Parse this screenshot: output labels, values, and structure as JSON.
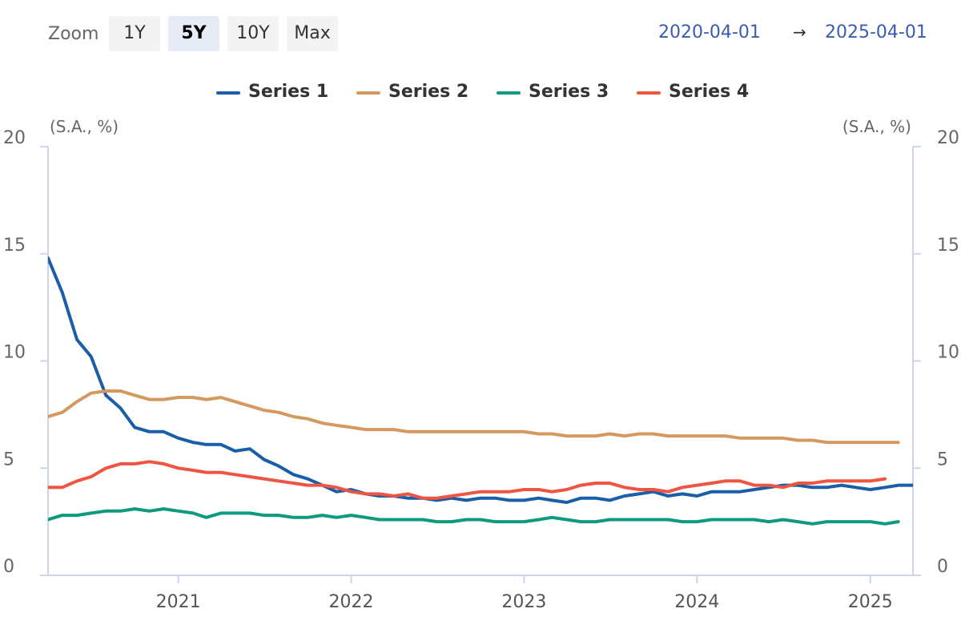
{
  "toolbar": {
    "zoom_label": "Zoom",
    "buttons": [
      "1Y",
      "5Y",
      "10Y",
      "Max"
    ],
    "active_button": "5Y",
    "range_from": "2020-04-01",
    "range_arrow": "→",
    "range_to": "2025-04-01"
  },
  "colors": {
    "series_1": "#1a5ea8",
    "series_2": "#d4995f",
    "series_3": "#0e9a7e",
    "series_4": "#f05442",
    "axis": "#ccd6eb",
    "active_button_bg": "#e6ebf5",
    "range_text": "#3a5db0"
  },
  "chart_data": {
    "type": "line",
    "y_unit_left": "(S.A., %)",
    "y_unit_right": "(S.A., %)",
    "ylim": [
      0,
      20
    ],
    "yticks": [
      0,
      5,
      10,
      15,
      20
    ],
    "xlim": [
      "2020-04-01",
      "2025-04-01"
    ],
    "xticks": [
      {
        "label": "2021",
        "date": "2021-01-01"
      },
      {
        "label": "2022",
        "date": "2022-01-01"
      },
      {
        "label": "2023",
        "date": "2023-01-01"
      },
      {
        "label": "2024",
        "date": "2024-01-01"
      },
      {
        "label": "2025",
        "date": "2025-01-01"
      }
    ],
    "grid": false,
    "legend": "top-center",
    "series": [
      {
        "name": "Series 1",
        "color": "#1a5ea8",
        "start": "2020-04",
        "values": [
          14.8,
          13.2,
          11.0,
          10.2,
          8.4,
          7.8,
          6.9,
          6.7,
          6.7,
          6.4,
          6.2,
          6.1,
          6.1,
          5.8,
          5.9,
          5.4,
          5.1,
          4.7,
          4.5,
          4.2,
          3.9,
          4.0,
          3.8,
          3.7,
          3.7,
          3.6,
          3.6,
          3.5,
          3.6,
          3.5,
          3.6,
          3.6,
          3.5,
          3.5,
          3.6,
          3.5,
          3.4,
          3.6,
          3.6,
          3.5,
          3.7,
          3.8,
          3.9,
          3.7,
          3.8,
          3.7,
          3.9,
          3.9,
          3.9,
          4.0,
          4.1,
          4.2,
          4.2,
          4.1,
          4.1,
          4.2,
          4.1,
          4.0,
          4.1,
          4.2,
          4.2
        ]
      },
      {
        "name": "Series 2",
        "color": "#d4995f",
        "start": "2020-04",
        "values": [
          7.4,
          7.6,
          8.1,
          8.5,
          8.6,
          8.6,
          8.4,
          8.2,
          8.2,
          8.3,
          8.3,
          8.2,
          8.3,
          8.1,
          7.9,
          7.7,
          7.6,
          7.4,
          7.3,
          7.1,
          7.0,
          6.9,
          6.8,
          6.8,
          6.8,
          6.7,
          6.7,
          6.7,
          6.7,
          6.7,
          6.7,
          6.7,
          6.7,
          6.7,
          6.6,
          6.6,
          6.5,
          6.5,
          6.5,
          6.6,
          6.5,
          6.6,
          6.6,
          6.5,
          6.5,
          6.5,
          6.5,
          6.5,
          6.4,
          6.4,
          6.4,
          6.4,
          6.3,
          6.3,
          6.2,
          6.2,
          6.2,
          6.2,
          6.2,
          6.2
        ]
      },
      {
        "name": "Series 3",
        "color": "#0e9a7e",
        "start": "2020-04",
        "values": [
          2.6,
          2.8,
          2.8,
          2.9,
          3.0,
          3.0,
          3.1,
          3.0,
          3.1,
          3.0,
          2.9,
          2.7,
          2.9,
          2.9,
          2.9,
          2.8,
          2.8,
          2.7,
          2.7,
          2.8,
          2.7,
          2.8,
          2.7,
          2.6,
          2.6,
          2.6,
          2.6,
          2.5,
          2.5,
          2.6,
          2.6,
          2.5,
          2.5,
          2.5,
          2.6,
          2.7,
          2.6,
          2.5,
          2.5,
          2.6,
          2.6,
          2.6,
          2.6,
          2.6,
          2.5,
          2.5,
          2.6,
          2.6,
          2.6,
          2.6,
          2.5,
          2.6,
          2.5,
          2.4,
          2.5,
          2.5,
          2.5,
          2.5,
          2.4,
          2.5
        ]
      },
      {
        "name": "Series 4",
        "color": "#f05442",
        "start": "2020-04",
        "values": [
          4.1,
          4.1,
          4.4,
          4.6,
          5.0,
          5.2,
          5.2,
          5.3,
          5.2,
          5.0,
          4.9,
          4.8,
          4.8,
          4.7,
          4.6,
          4.5,
          4.4,
          4.3,
          4.2,
          4.2,
          4.1,
          3.9,
          3.8,
          3.8,
          3.7,
          3.8,
          3.6,
          3.6,
          3.7,
          3.8,
          3.9,
          3.9,
          3.9,
          4.0,
          4.0,
          3.9,
          4.0,
          4.2,
          4.3,
          4.3,
          4.1,
          4.0,
          4.0,
          3.9,
          4.1,
          4.2,
          4.3,
          4.4,
          4.4,
          4.2,
          4.2,
          4.1,
          4.3,
          4.3,
          4.4,
          4.4,
          4.4,
          4.4,
          4.5
        ]
      }
    ]
  }
}
